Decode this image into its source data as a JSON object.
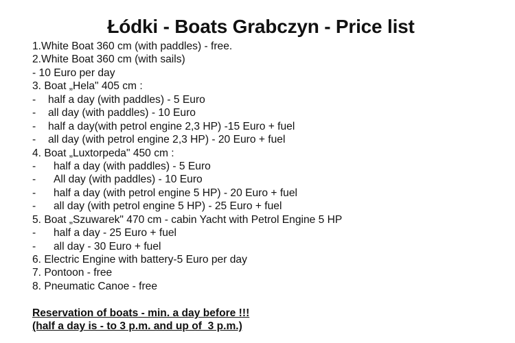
{
  "title": "Łódki - Boats Grabczyn - Price list",
  "lines": [
    "1.White Boat 360 cm (with paddles) - free.",
    "2.White Boat 360 cm (with sails)",
    "- 10 Euro per day",
    "3. Boat „Hela\" 405 cm :",
    "half a day (with paddles) - 5 Euro",
    "all day (with paddles) - 10 Euro",
    "half a day(with petrol engine 2,3 HP) -15 Euro + fuel",
    "all day (with petrol engine 2,3 HP) - 20 Euro + fuel",
    "4. Boat „Luxtorpeda\" 450 cm :",
    "half a day (with paddles) - 5 Euro",
    "All day (with paddles) - 10 Euro",
    "half a day (with petrol engine 5 HP) - 20 Euro + fuel",
    "all day (with petrol engine 5 HP) - 25 Euro + fuel",
    "5. Boat „Szuwarek\" 470 cm - cabin Yacht with Petrol Engine 5 HP",
    "half a day - 25 Euro + fuel",
    "all day - 30 Euro + fuel",
    "6. Electric Engine with battery-5 Euro per day",
    "7. Pontoon - free",
    "8. Pneumatic Canoe - free"
  ],
  "dash": "-",
  "notes": [
    "Reservation of boats - min. a day before !!!",
    "(half a day is - to 3 p.m. and up of  3 p.m.)"
  ]
}
